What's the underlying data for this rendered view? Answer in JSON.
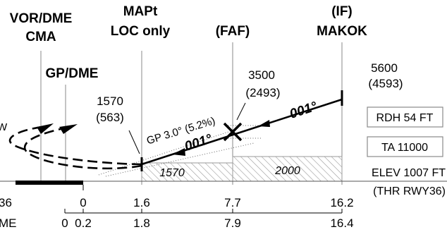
{
  "fixes": {
    "vor_dme_line1": "VOR/DME",
    "vor_dme_line2": "CMA",
    "gp_dme": "GP/DME",
    "mapt_line1": "MAPt",
    "mapt_line2": "LOC only",
    "faf": "(FAF)",
    "if_line1": "(IF)",
    "if_line2": "MAKOK"
  },
  "altitudes": {
    "makok_alt": "5600",
    "makok_height": "(4593)",
    "faf_alt": "3500",
    "faf_height": "(2493)",
    "mapt_alt": "1570",
    "mapt_height": "(563)"
  },
  "courses": {
    "inbound_course_1": "001°",
    "inbound_course_2": "001°"
  },
  "glidepath": {
    "label": "GP 3.0° (5.2%)"
  },
  "left_partial": {
    "text_w": "W",
    "text_36": "36",
    "text_me": "ME"
  },
  "boxes": {
    "rdh": "RDH 54 FT",
    "ta": "TA 11000"
  },
  "minimums": {
    "segment_1": "1570",
    "segment_2": "2000"
  },
  "elevation": {
    "elev": "ELEV 1007 FT",
    "thr": "(THR RWY36)"
  },
  "distance_scale_1": [
    "0",
    "1.6",
    "7.7",
    "16.2"
  ],
  "distance_scale_2": [
    "0",
    "0.2",
    "1.8",
    "7.9",
    "16.4"
  ]
}
